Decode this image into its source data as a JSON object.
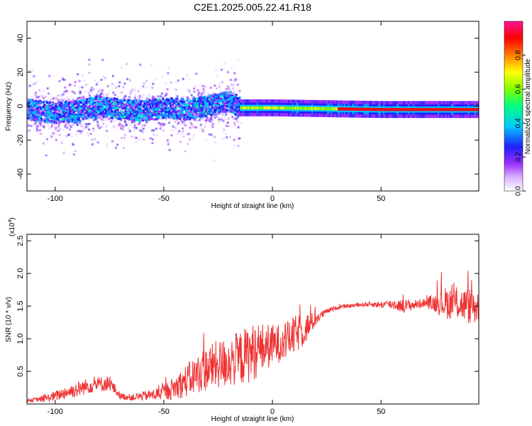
{
  "title": "C2E1.2025.005.22.41.R18",
  "chart_data": [
    {
      "type": "heatmap",
      "title": "C2E1.2025.005.22.41.R18",
      "xlabel": "Height of straight line (km)",
      "ylabel": "Frequency (Hz)",
      "xlim": [
        -113,
        95
      ],
      "ylim": [
        -50,
        50
      ],
      "xticks": [
        -100,
        -50,
        0,
        50
      ],
      "yticks": [
        -40,
        -20,
        0,
        20,
        40
      ],
      "colorbar": {
        "label": "Normalized spectral amplitude",
        "range": [
          0,
          1
        ],
        "ticks": [
          0.0,
          0.2,
          0.4,
          0.6,
          0.8
        ],
        "tick_labels": [
          "0.0",
          "0.2",
          "0.4",
          "0.6",
          "0.8"
        ],
        "colormap": [
          "#ffffff",
          "#9b30ff",
          "#2020ff",
          "#00c8ff",
          "#00ff80",
          "#80ff00",
          "#ffff00",
          "#ff8000",
          "#ff0000",
          "#ff1493"
        ]
      },
      "trace": {
        "description_points_x": [
          -113,
          -100,
          -90,
          -80,
          -70,
          -60,
          -50,
          -40,
          -30,
          -20,
          -15,
          0,
          50,
          95
        ],
        "center_frequency_hz": [
          -2,
          -4,
          -3,
          0,
          -2,
          -3,
          -1,
          -2,
          0,
          3,
          -1,
          -1,
          -2,
          -2
        ]
      }
    },
    {
      "type": "line",
      "title": "",
      "xlabel": "Height of straight line (km)",
      "ylabel": "SNR (10 * v/v)",
      "y_multiplier_label": "(x10",
      "y_multiplier_exp": "4",
      "y_multiplier_close": ")",
      "xlim": [
        -113,
        95
      ],
      "ylim": [
        0,
        2.6
      ],
      "xticks": [
        -100,
        -50,
        0,
        50
      ],
      "yticks": [
        0.5,
        1.0,
        1.5,
        2.0,
        2.5
      ],
      "ytick_labels": [
        "0.5",
        "1.0",
        "1.5",
        "2.0",
        "2.5"
      ],
      "series": [
        {
          "color": "#ee3333",
          "x": [
            -113,
            -105,
            -100,
            -95,
            -90,
            -85,
            -80,
            -75,
            -70,
            -65,
            -60,
            -55,
            -50,
            -45,
            -40,
            -35,
            -30,
            -25,
            -20,
            -15,
            -10,
            -5,
            0,
            5,
            10,
            15,
            20,
            25,
            30,
            35,
            40,
            45,
            50,
            55,
            60,
            65,
            70,
            75,
            80,
            85,
            90,
            95
          ],
          "y": [
            0.05,
            0.08,
            0.12,
            0.18,
            0.22,
            0.28,
            0.3,
            0.32,
            0.12,
            0.1,
            0.12,
            0.14,
            0.18,
            0.25,
            0.35,
            0.45,
            0.55,
            0.6,
            0.65,
            0.7,
            0.78,
            0.85,
            0.9,
            0.95,
            1.05,
            1.15,
            1.3,
            1.42,
            1.48,
            1.5,
            1.52,
            1.53,
            1.52,
            1.53,
            1.5,
            1.52,
            1.55,
            1.55,
            1.55,
            1.55,
            1.5,
            1.5
          ],
          "noise": [
            0.02,
            0.05,
            0.08,
            0.1,
            0.12,
            0.12,
            0.12,
            0.12,
            0.05,
            0.05,
            0.07,
            0.09,
            0.12,
            0.18,
            0.25,
            0.3,
            0.35,
            0.38,
            0.4,
            0.42,
            0.45,
            0.4,
            0.32,
            0.28,
            0.3,
            0.25,
            0.1,
            0.04,
            0.03,
            0.03,
            0.03,
            0.04,
            0.05,
            0.08,
            0.1,
            0.08,
            0.06,
            0.15,
            0.25,
            0.25,
            0.28,
            0.3
          ]
        }
      ]
    }
  ]
}
